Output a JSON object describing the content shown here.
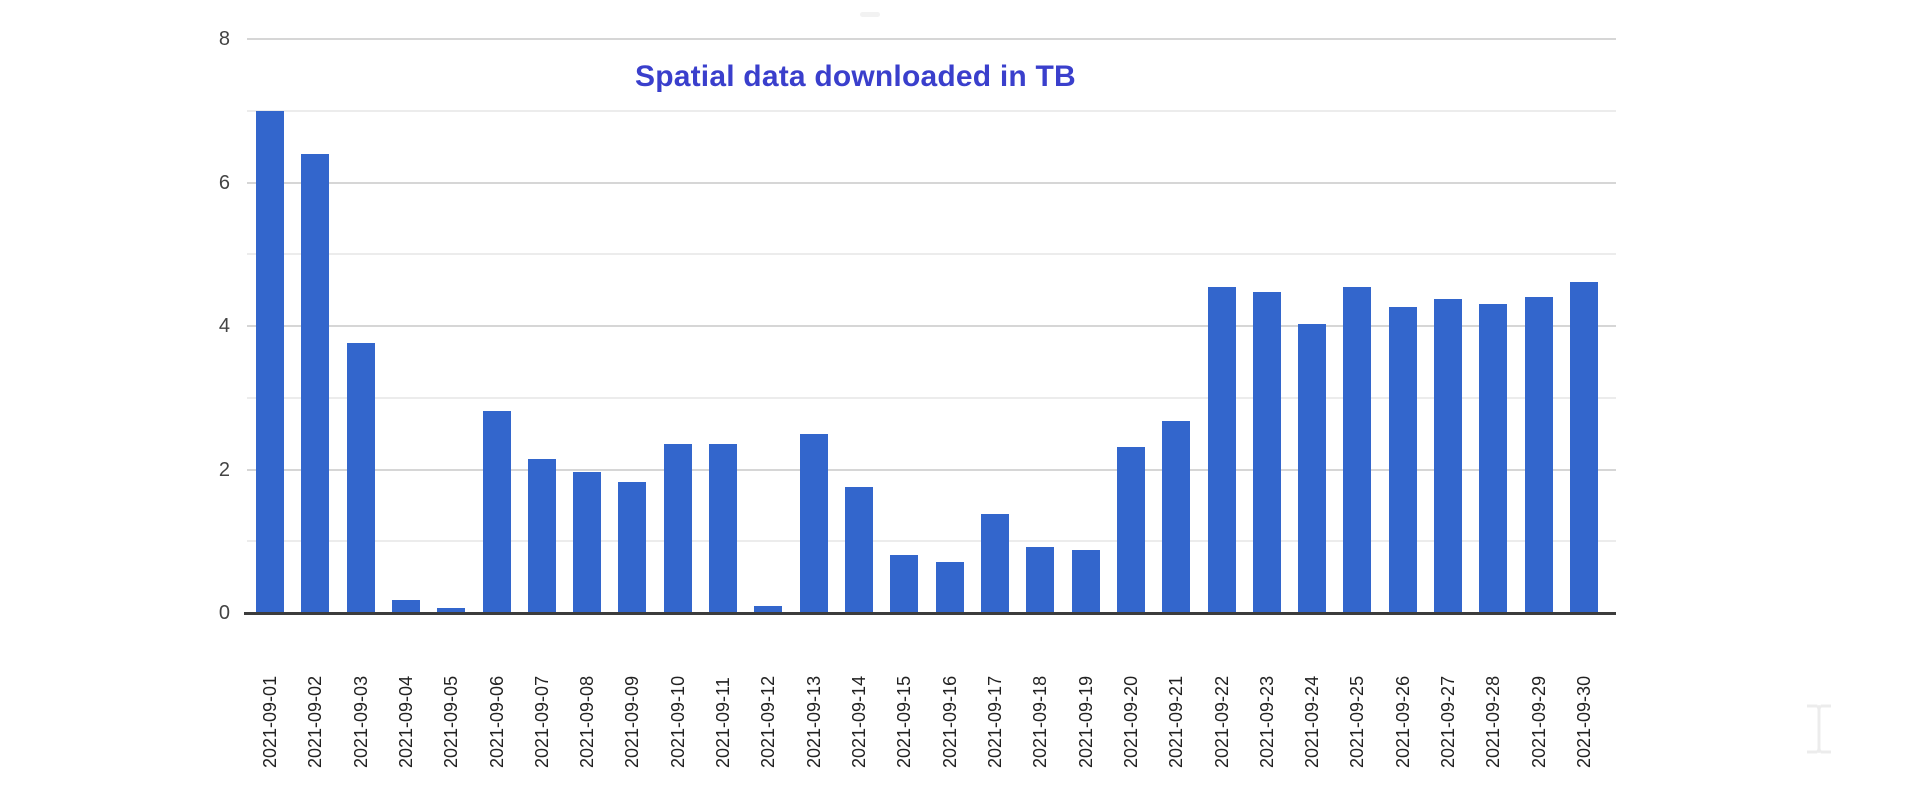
{
  "chart_data": {
    "type": "bar",
    "title": "Spatial data downloaded in TB",
    "xlabel": "",
    "ylabel": "",
    "ylim": [
      0,
      8
    ],
    "yticks": [
      0,
      2,
      4,
      6,
      8
    ],
    "minor_gridlines": [
      1,
      3,
      5,
      7
    ],
    "grid": true,
    "legend": null,
    "bar_color": "#3366cc",
    "title_color": "#3a3fcc",
    "categories": [
      "2021-09-01",
      "2021-09-02",
      "2021-09-03",
      "2021-09-04",
      "2021-09-05",
      "2021-09-06",
      "2021-09-07",
      "2021-09-08",
      "2021-09-09",
      "2021-09-10",
      "2021-09-11",
      "2021-09-12",
      "2021-09-13",
      "2021-09-14",
      "2021-09-15",
      "2021-09-16",
      "2021-09-17",
      "2021-09-18",
      "2021-09-19",
      "2021-09-20",
      "2021-09-21",
      "2021-09-22",
      "2021-09-23",
      "2021-09-24",
      "2021-09-25",
      "2021-09-26",
      "2021-09-27",
      "2021-09-28",
      "2021-09-29",
      "2021-09-30"
    ],
    "values": [
      7.0,
      6.4,
      3.77,
      0.18,
      0.07,
      2.82,
      2.15,
      1.97,
      1.83,
      2.36,
      2.36,
      0.1,
      2.5,
      1.76,
      0.81,
      0.71,
      1.38,
      0.92,
      0.88,
      2.32,
      2.68,
      4.55,
      4.48,
      4.03,
      4.55,
      4.27,
      4.37,
      4.3,
      4.41,
      4.62
    ]
  },
  "overlay": {
    "cursor_icon": "text-cursor-icon"
  }
}
